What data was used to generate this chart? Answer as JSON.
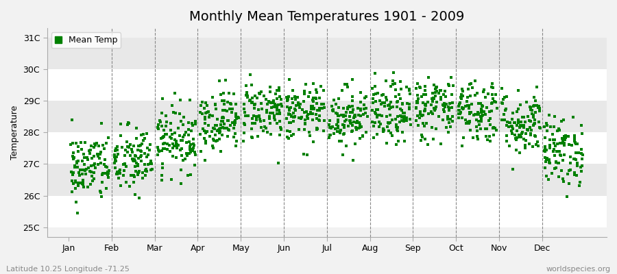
{
  "title": "Monthly Mean Temperatures 1901 - 2009",
  "ylabel": "Temperature",
  "xlabel_labels": [
    "Jan",
    "Feb",
    "Mar",
    "Apr",
    "May",
    "Jun",
    "Jul",
    "Aug",
    "Sep",
    "Oct",
    "Nov",
    "Dec"
  ],
  "ytick_labels": [
    "25C",
    "26C",
    "27C",
    "28C",
    "29C",
    "30C",
    "31C"
  ],
  "ytick_values": [
    25,
    26,
    27,
    28,
    29,
    30,
    31
  ],
  "ylim": [
    24.7,
    31.3
  ],
  "scatter_color": "#008000",
  "marker_size": 3,
  "legend_label": "Mean Temp",
  "bottom_left_text": "Latitude 10.25 Longitude -71.25",
  "bottom_right_text": "worldspecies.org",
  "bg_color": "#f2f2f2",
  "plot_bg_color": "#f2f2f2",
  "stripe_colors": [
    "#ffffff",
    "#e8e8e8"
  ],
  "monthly_means": [
    26.9,
    27.1,
    27.8,
    28.4,
    28.7,
    28.6,
    28.5,
    28.6,
    28.8,
    28.7,
    28.3,
    27.4
  ],
  "monthly_stds": [
    0.55,
    0.55,
    0.52,
    0.48,
    0.48,
    0.45,
    0.48,
    0.5,
    0.52,
    0.52,
    0.52,
    0.55
  ],
  "n_years": 109,
  "seed": 42,
  "title_fontsize": 14,
  "axis_label_fontsize": 9,
  "tick_fontsize": 9,
  "annotation_fontsize": 8,
  "vline_positions": [
    1,
    2,
    3,
    4,
    5,
    6,
    7,
    8,
    9,
    10,
    11
  ],
  "xlim": [
    -0.5,
    12.5
  ],
  "month_tick_positions": [
    0,
    1,
    2,
    3,
    4,
    5,
    6,
    7,
    8,
    9,
    10,
    11
  ]
}
